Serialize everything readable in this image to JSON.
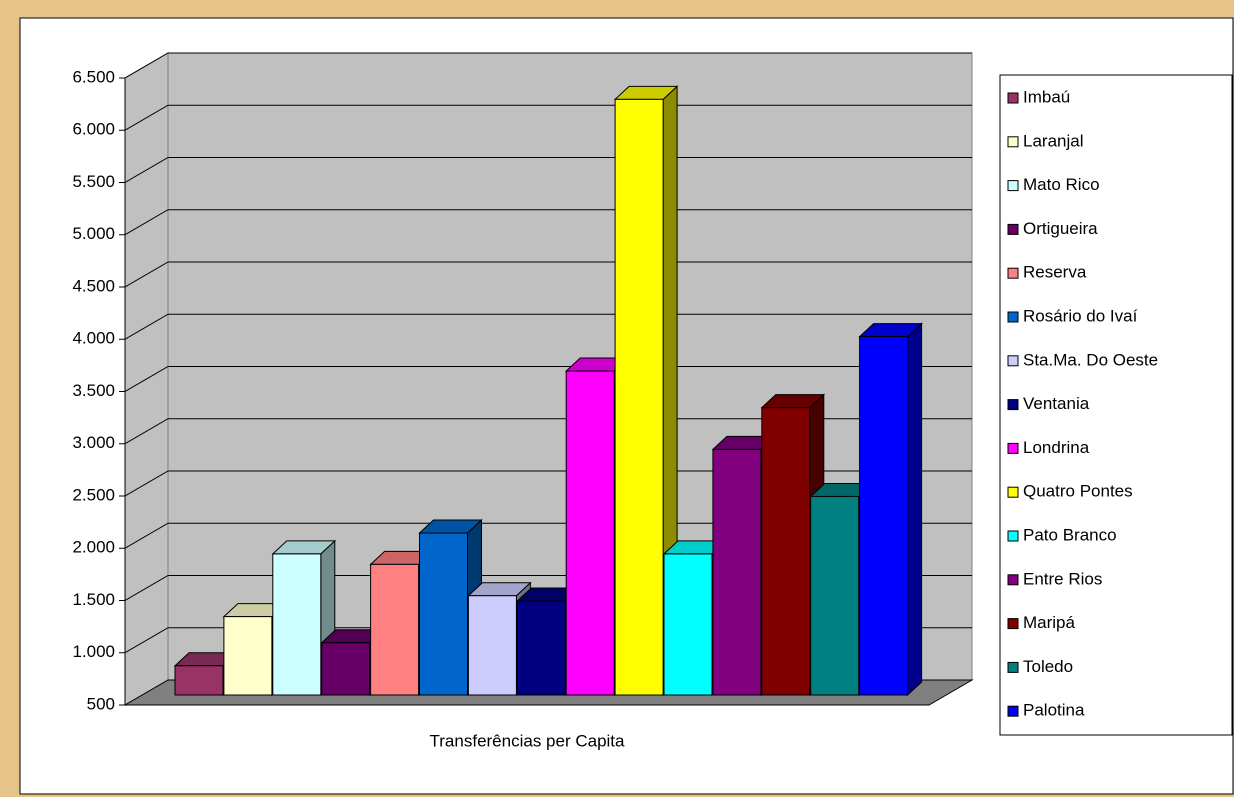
{
  "chart_data": {
    "type": "bar3d",
    "categories": [
      "Transferências per Capita"
    ],
    "series": [
      {
        "name": "Imbaú",
        "color": "#993366",
        "values": [
          780
        ]
      },
      {
        "name": "Laranjal",
        "color": "#ffffcc",
        "values": [
          1250
        ]
      },
      {
        "name": "Mato Rico",
        "color": "#ccffff",
        "values": [
          1850
        ]
      },
      {
        "name": "Ortigueira",
        "color": "#660066",
        "values": [
          1000
        ]
      },
      {
        "name": "Reserva",
        "color": "#ff8080",
        "values": [
          1750
        ]
      },
      {
        "name": "Rosário do Ivaí",
        "color": "#0066cc",
        "values": [
          2050
        ]
      },
      {
        "name": "Sta.Ma. Do Oeste",
        "color": "#ccccff",
        "values": [
          1450
        ]
      },
      {
        "name": "Ventania",
        "color": "#000080",
        "values": [
          1400
        ]
      },
      {
        "name": "Londrina",
        "color": "#ff00ff",
        "values": [
          3600
        ]
      },
      {
        "name": "Quatro Pontes",
        "color": "#ffff00",
        "values": [
          6200
        ]
      },
      {
        "name": "Pato Branco",
        "color": "#00ffff",
        "values": [
          1850
        ]
      },
      {
        "name": "Entre Rios",
        "color": "#800080",
        "values": [
          2850
        ]
      },
      {
        "name": "Maripá",
        "color": "#800000",
        "values": [
          3250
        ]
      },
      {
        "name": "Toledo",
        "color": "#008080",
        "values": [
          2400
        ]
      },
      {
        "name": "Palotina",
        "color": "#0000ff",
        "values": [
          3930
        ]
      }
    ],
    "ylim": [
      500,
      6500
    ],
    "yticks": [
      500,
      {
        "value": 1000,
        "label": "1.000"
      },
      {
        "value": 1500,
        "label": "1.500"
      },
      {
        "value": 2000,
        "label": "2.000"
      },
      {
        "value": 2500,
        "label": "2.500"
      },
      {
        "value": 3000,
        "label": "3.000"
      },
      {
        "value": 3500,
        "label": "3.500"
      },
      {
        "value": 4000,
        "label": "4.000"
      },
      {
        "value": 4500,
        "label": "4.500"
      },
      {
        "value": 5000,
        "label": "5.000"
      },
      {
        "value": 5500,
        "label": "5.500"
      },
      {
        "value": 6000,
        "label": "6.000"
      },
      {
        "value": 6500,
        "label": "6.500"
      }
    ],
    "grid": true
  }
}
